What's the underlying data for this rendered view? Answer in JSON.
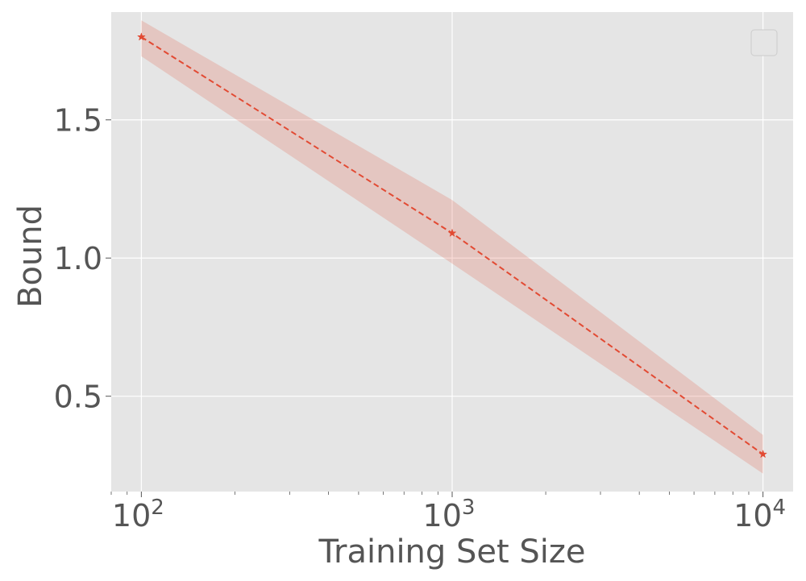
{
  "chart_data": {
    "type": "line",
    "xscale": "log",
    "x": [
      100,
      1000,
      10000
    ],
    "xlim": [
      80,
      12500
    ],
    "ylim": [
      0.155,
      1.89
    ],
    "xticks": [
      {
        "value": 100,
        "base": "10",
        "exp": "2"
      },
      {
        "value": 1000,
        "base": "10",
        "exp": "3"
      },
      {
        "value": 10000,
        "base": "10",
        "exp": "4"
      }
    ],
    "yticks": [
      {
        "value": 0.5,
        "label": "0.5"
      },
      {
        "value": 1.0,
        "label": "1.0"
      },
      {
        "value": 1.5,
        "label": "1.5"
      }
    ],
    "xlabel": "Training Set Size",
    "ylabel": "Bound",
    "series": [
      {
        "values": [
          1.8,
          1.09,
          0.29
        ],
        "upper": [
          1.86,
          1.21,
          0.36
        ],
        "lower": [
          1.73,
          0.98,
          0.22
        ],
        "color": "#E24A33",
        "line_style": "dashed",
        "marker": "star"
      }
    ],
    "legend": {
      "position": "top-right",
      "entries": []
    },
    "grid": true,
    "background": "#E5E5E5"
  }
}
